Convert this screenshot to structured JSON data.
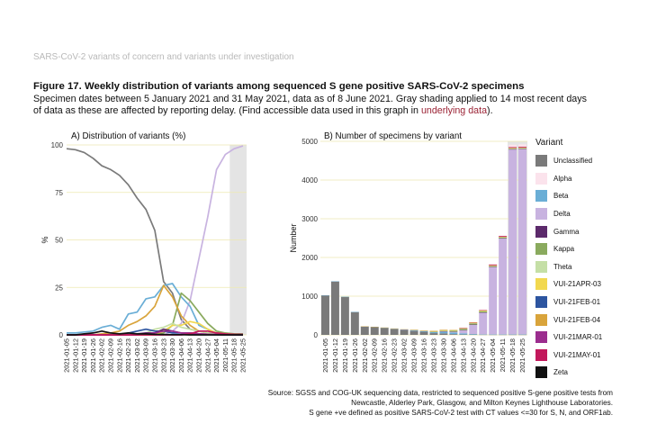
{
  "header": "SARS-CoV-2 variants of concern and variants under investigation",
  "title": "Figure 17. Weekly distribution of variants among sequenced S gene positive SARS-CoV-2 specimens",
  "subtitle": {
    "line1": "Specimen dates between 5 January 2021 and 31 May 2021, data as of 8 June 2021. Gray shading applied to 14 most recent days",
    "line2_before": "of data as these are affected by reporting delay. (Find accessible data used in this graph in ",
    "link": "underlying data",
    "line2_after": ")."
  },
  "source": {
    "line1": "Source: SGSS and COG-UK sequencing data, restricted to sequenced positive S-gene positive tests from",
    "line2": "Newcastle, Alderley Park, Glasgow, and Milton Keynes Lighthouse Laboratories.",
    "line3": "S gene +ve defined as positive SARS-CoV-2 test with CT values <=30 for S, N, and ORF1ab."
  },
  "legend": {
    "title": "Variant",
    "items": [
      {
        "label": "Unclassified",
        "color": "#7a7a7a"
      },
      {
        "label": "Alpha",
        "color": "#fbe3ec"
      },
      {
        "label": "Beta",
        "color": "#6aaed6"
      },
      {
        "label": "Delta",
        "color": "#c8b3e0"
      },
      {
        "label": "Gamma",
        "color": "#5c2a6b"
      },
      {
        "label": "Kappa",
        "color": "#8aaa5e"
      },
      {
        "label": "Theta",
        "color": "#c5dfa6"
      },
      {
        "label": "VUI-21APR-03",
        "color": "#f2d84f"
      },
      {
        "label": "VUI-21FEB-01",
        "color": "#2d55a0"
      },
      {
        "label": "VUI-21FEB-04",
        "color": "#d9a43b"
      },
      {
        "label": "VUI-21MAR-01",
        "color": "#9b2d8e"
      },
      {
        "label": "VUI-21MAY-01",
        "color": "#c2185b"
      },
      {
        "label": "Zeta",
        "color": "#111111"
      }
    ]
  },
  "chart_data": [
    {
      "type": "line",
      "title": "A) Distribution of variants (%)",
      "xlabel": "",
      "ylabel": "%",
      "ylim": [
        0,
        100
      ],
      "yticks": [
        0,
        25,
        50,
        75,
        100
      ],
      "shaded_from": "2021-05-18",
      "categories": [
        "2021-01-05",
        "2021-01-12",
        "2021-01-19",
        "2021-01-26",
        "2021-02-02",
        "2021-02-09",
        "2021-02-16",
        "2021-02-23",
        "2021-03-02",
        "2021-03-09",
        "2021-03-16",
        "2021-03-23",
        "2021-03-30",
        "2021-04-06",
        "2021-04-13",
        "2021-04-20",
        "2021-04-27",
        "2021-05-04",
        "2021-05-11",
        "2021-05-18",
        "2021-05-25"
      ],
      "series": [
        {
          "name": "Unclassified",
          "color": "#7a7a7a",
          "values": [
            98,
            97.5,
            96,
            93,
            89,
            87,
            84,
            79,
            72,
            66,
            55,
            28,
            22,
            8,
            3,
            2,
            1,
            1,
            0.5,
            0.5,
            0.5
          ]
        },
        {
          "name": "Delta",
          "color": "#c8b3e0",
          "values": [
            0,
            0,
            0,
            0,
            0,
            0,
            0,
            0,
            0,
            0,
            0,
            0,
            2,
            6,
            18,
            40,
            62,
            87,
            95,
            98,
            99.5
          ]
        },
        {
          "name": "Beta",
          "color": "#6aaed6",
          "values": [
            1,
            1,
            1.5,
            2,
            4,
            5,
            3,
            11,
            12,
            19,
            20,
            26,
            27,
            20,
            15,
            5,
            3,
            1,
            0.5,
            0.3,
            0.2
          ]
        },
        {
          "name": "Kappa",
          "color": "#8aaa5e",
          "values": [
            0,
            0,
            0,
            0,
            0,
            0,
            0,
            0,
            0,
            0,
            0,
            1,
            5,
            22,
            18,
            12,
            6,
            2,
            1,
            0.5,
            0.3
          ]
        },
        {
          "name": "VUI-21FEB-04",
          "color": "#d9a43b",
          "values": [
            0,
            0,
            0,
            0,
            0.5,
            1,
            2,
            5,
            7,
            10,
            15,
            26,
            20,
            10,
            5,
            2,
            1,
            0.5,
            0.3,
            0.2,
            0.1
          ]
        },
        {
          "name": "VUI-21APR-03",
          "color": "#f2d84f",
          "values": [
            0,
            0,
            0,
            0,
            0,
            0,
            0,
            0,
            0,
            0,
            0,
            2,
            5,
            5,
            7,
            6,
            3,
            1,
            0.5,
            0.3,
            0.2
          ]
        },
        {
          "name": "Theta",
          "color": "#c5dfa6",
          "values": [
            0,
            0,
            0,
            0,
            0,
            0,
            0,
            0,
            0,
            1,
            3,
            4,
            6,
            4,
            3,
            2,
            1,
            0.5,
            0.3,
            0.2,
            0.1
          ]
        },
        {
          "name": "VUI-21FEB-01",
          "color": "#2d55a0",
          "values": [
            0,
            0,
            0,
            0,
            0,
            0,
            0,
            1,
            2,
            3,
            2,
            2,
            1,
            1,
            0.5,
            0.3,
            0.2,
            0.1,
            0.1,
            0.1,
            0
          ]
        },
        {
          "name": "Gamma",
          "color": "#5c2a6b",
          "values": [
            0,
            0,
            0,
            0,
            0,
            0,
            0,
            0,
            0.5,
            1,
            1,
            3,
            2,
            1,
            1,
            0.5,
            0.3,
            0.2,
            0.1,
            0.1,
            0
          ]
        },
        {
          "name": "VUI-21MAR-01",
          "color": "#9b2d8e",
          "values": [
            0,
            0,
            0,
            0,
            0,
            0,
            0,
            0,
            0,
            0.5,
            1,
            2,
            2,
            1,
            1,
            0.5,
            0.3,
            0.2,
            0.1,
            0,
            0
          ]
        },
        {
          "name": "VUI-21MAY-01",
          "color": "#c2185b",
          "values": [
            0,
            0,
            0,
            0,
            0,
            0,
            0,
            0,
            0,
            0,
            0,
            0,
            0,
            0,
            0.5,
            2,
            2,
            1,
            0.5,
            0.3,
            0.2
          ]
        },
        {
          "name": "Zeta",
          "color": "#111111",
          "values": [
            0,
            0,
            0.5,
            1,
            2,
            1,
            0.5,
            1,
            0.5,
            0.5,
            0.3,
            0.2,
            0.1,
            0.1,
            0,
            0,
            0,
            0,
            0,
            0,
            0
          ]
        }
      ]
    },
    {
      "type": "bar",
      "title": "B) Number of specimens by variant",
      "xlabel": "",
      "ylabel": "Number",
      "ylim": [
        0,
        5000
      ],
      "yticks": [
        0,
        1000,
        2000,
        3000,
        4000,
        5000
      ],
      "shaded_from": "2021-05-18",
      "categories": [
        "2021-01-05",
        "2021-01-12",
        "2021-01-19",
        "2021-01-26",
        "2021-02-02",
        "2021-02-09",
        "2021-02-16",
        "2021-02-23",
        "2021-03-02",
        "2021-03-09",
        "2021-03-16",
        "2021-03-23",
        "2021-03-30",
        "2021-04-06",
        "2021-04-13",
        "2021-04-20",
        "2021-04-27",
        "2021-05-04",
        "2021-05-11",
        "2021-05-18",
        "2021-05-25"
      ],
      "series": [
        {
          "name": "Unclassified",
          "color": "#7a7a7a",
          "values": [
            1020,
            1380,
            980,
            590,
            210,
            200,
            180,
            150,
            120,
            100,
            70,
            45,
            40,
            20,
            10,
            8,
            6,
            5,
            5,
            5,
            5
          ]
        },
        {
          "name": "Beta",
          "color": "#6aaed6",
          "values": [
            5,
            5,
            5,
            5,
            8,
            8,
            6,
            10,
            15,
            20,
            25,
            30,
            40,
            40,
            30,
            15,
            10,
            10,
            10,
            10,
            10
          ]
        },
        {
          "name": "Delta",
          "color": "#c8b3e0",
          "values": [
            0,
            0,
            0,
            0,
            0,
            0,
            0,
            0,
            0,
            0,
            0,
            0,
            10,
            20,
            80,
            240,
            560,
            1740,
            2480,
            4780,
            4790
          ]
        },
        {
          "name": "Gamma",
          "color": "#5c2a6b",
          "values": [
            0,
            0,
            0,
            0,
            0,
            0,
            0,
            0,
            2,
            3,
            3,
            5,
            5,
            5,
            5,
            3,
            3,
            3,
            2,
            2,
            2
          ]
        },
        {
          "name": "Kappa",
          "color": "#8aaa5e",
          "values": [
            0,
            0,
            0,
            0,
            0,
            0,
            0,
            0,
            0,
            0,
            0,
            2,
            8,
            25,
            30,
            30,
            30,
            20,
            20,
            15,
            15
          ]
        },
        {
          "name": "Theta",
          "color": "#c5dfa6",
          "values": [
            0,
            0,
            0,
            0,
            0,
            0,
            0,
            0,
            0,
            2,
            3,
            5,
            8,
            5,
            5,
            5,
            5,
            5,
            5,
            5,
            5
          ]
        },
        {
          "name": "VUI-21APR-03",
          "color": "#f2d84f",
          "values": [
            0,
            0,
            0,
            0,
            0,
            0,
            0,
            0,
            0,
            0,
            0,
            2,
            5,
            5,
            10,
            15,
            15,
            10,
            10,
            10,
            10
          ]
        },
        {
          "name": "VUI-21FEB-04",
          "color": "#d9a43b",
          "values": [
            0,
            0,
            0,
            0,
            1,
            2,
            4,
            6,
            8,
            10,
            12,
            15,
            15,
            10,
            8,
            5,
            5,
            5,
            5,
            5,
            5
          ]
        },
        {
          "name": "VUI-21MAY-01",
          "color": "#c2185b",
          "values": [
            0,
            0,
            0,
            0,
            0,
            0,
            0,
            0,
            0,
            0,
            0,
            0,
            0,
            0,
            1,
            5,
            10,
            20,
            20,
            20,
            20
          ]
        },
        {
          "name": "Alpha",
          "color": "#fbe3ec",
          "values": [
            0,
            0,
            0,
            0,
            0,
            0,
            0,
            0,
            0,
            0,
            0,
            0,
            0,
            0,
            0,
            0,
            0,
            0,
            0,
            60,
            60
          ]
        }
      ]
    }
  ]
}
